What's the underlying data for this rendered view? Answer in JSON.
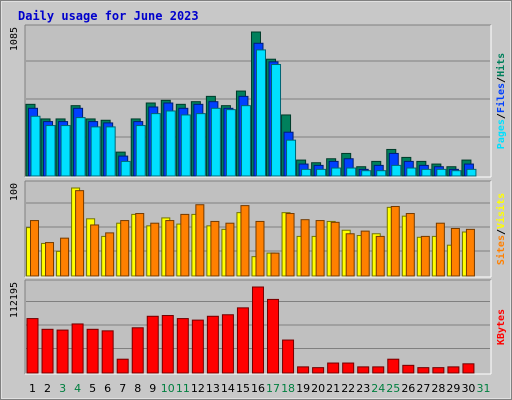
{
  "chart_data": {
    "type": "bar",
    "title": "Daily usage for June 2023",
    "categories": [
      "1",
      "2",
      "3",
      "4",
      "5",
      "6",
      "7",
      "8",
      "9",
      "10",
      "11",
      "12",
      "13",
      "14",
      "15",
      "16",
      "17",
      "18",
      "19",
      "20",
      "21",
      "22",
      "23",
      "24",
      "25",
      "26",
      "27",
      "28",
      "29",
      "30",
      "31"
    ],
    "weekend_days": [
      "3",
      "4",
      "10",
      "11",
      "17",
      "18",
      "24",
      "25",
      "31"
    ],
    "colors": {
      "title": "#0000cc",
      "background": "#c0c0c0",
      "grid": "#808080",
      "weekday_label": "#000000",
      "weekend_label": "#007f3f",
      "hits": "#00805c",
      "files": "#0040ff",
      "pages": "#00e0ff",
      "visits": "#ffff00",
      "sites": "#ff8000",
      "kbytes": "#ff0000"
    },
    "panels": [
      {
        "id": "hits-files-pages",
        "ymax_label": "1085",
        "ylim": [
          0,
          1085
        ],
        "side_labels": [
          "Pages",
          "/",
          "Files",
          "/",
          "Hits"
        ],
        "side_colors": [
          "#00e0ff",
          "#000000",
          "#0040ff",
          "#000000",
          "#00805c"
        ],
        "series": [
          {
            "name": "Hits",
            "values": [
              540,
              430,
              430,
              530,
              430,
              420,
              180,
              430,
              550,
              570,
              540,
              560,
              600,
              530,
              640,
              1085,
              880,
              460,
              120,
              100,
              130,
              170,
              70,
              110,
              200,
              140,
              110,
              90,
              70,
              120
            ]
          },
          {
            "name": "Files",
            "values": [
              510,
              410,
              410,
              510,
              410,
              400,
              150,
              410,
              520,
              550,
              510,
              540,
              560,
              510,
              600,
              1000,
              860,
              330,
              90,
              80,
              110,
              130,
              50,
              80,
              170,
              110,
              80,
              70,
              50,
              90
            ]
          },
          {
            "name": "Pages",
            "values": [
              450,
              380,
              380,
              440,
              370,
              370,
              110,
              380,
              470,
              490,
              460,
              470,
              510,
              500,
              530,
              950,
              840,
              270,
              50,
              50,
              60,
              60,
              40,
              40,
              80,
              60,
              50,
              50,
              40,
              50
            ]
          }
        ]
      },
      {
        "id": "visits-sites",
        "ymax_label": "100",
        "ylim": [
          0,
          100
        ],
        "side_labels": [
          "Sites",
          "/",
          "Visits"
        ],
        "side_colors": [
          "#ff8000",
          "#000000",
          "#ffff00"
        ],
        "series": [
          {
            "name": "Visits",
            "values": [
              55,
              37,
              28,
              100,
              65,
              45,
              60,
              70,
              57,
              66,
              59,
              70,
              57,
              53,
              72,
              22,
              26,
              72,
              45,
              45,
              62,
              52,
              46,
              48,
              78,
              68,
              44,
              45,
              35,
              50
            ]
          },
          {
            "name": "Sites",
            "values": [
              63,
              38,
              43,
              97,
              58,
              49,
              63,
              71,
              60,
              63,
              70,
              81,
              62,
              60,
              80,
              62,
              26,
              71,
              64,
              63,
              61,
              48,
              51,
              45,
              79,
              71,
              45,
              60,
              54,
              53
            ]
          }
        ]
      },
      {
        "id": "kbytes",
        "ymax_label": "112195",
        "ylim": [
          0,
          112195
        ],
        "side_labels": [
          "KBytes"
        ],
        "side_colors": [
          "#ff0000"
        ],
        "series": [
          {
            "name": "KBytes",
            "values": [
              71000,
              57000,
              56000,
              64000,
              57000,
              55000,
              18000,
              59000,
              74000,
              75000,
              71000,
              69000,
              74000,
              76000,
              85000,
              112195,
              96000,
              43000,
              8000,
              7000,
              13000,
              13000,
              8000,
              8000,
              18000,
              10000,
              7000,
              7000,
              8000,
              12000
            ]
          }
        ]
      }
    ]
  }
}
